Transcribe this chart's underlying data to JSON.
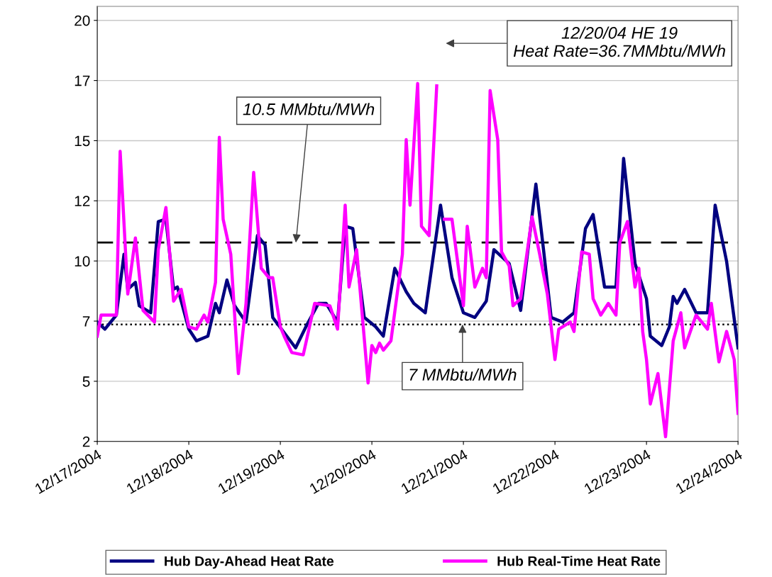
{
  "chart_data": {
    "type": "line",
    "xlim": [
      "2004-12-17",
      "2004-12-24"
    ],
    "xticks": [
      {
        "value": "2004-12-17",
        "label": "12/17/2004"
      },
      {
        "value": "2004-12-18",
        "label": "12/18/2004"
      },
      {
        "value": "2004-12-19",
        "label": "12/19/2004"
      },
      {
        "value": "2004-12-20",
        "label": "12/20/2004"
      },
      {
        "value": "2004-12-21",
        "label": "12/21/2004"
      },
      {
        "value": "2004-12-22",
        "label": "12/22/2004"
      },
      {
        "value": "2004-12-23",
        "label": "12/23/2004"
      },
      {
        "value": "2004-12-24",
        "label": "12/24/2004"
      }
    ],
    "ylim": [
      2,
      20.6
    ],
    "yticks": [
      2,
      {
        "value": 4.571,
        "label": "5"
      },
      {
        "value": 7.143,
        "label": "7"
      },
      {
        "value": 9.714,
        "label": "10"
      },
      {
        "value": 12.286,
        "label": "12"
      },
      {
        "value": 14.857,
        "label": "15"
      },
      {
        "value": 17.429,
        "label": "17"
      },
      20
    ],
    "grid": "y",
    "legend": "bottom",
    "marker": "none",
    "line_style": "solid",
    "series": [
      {
        "name": "Hub Day-Ahead Heat Rate",
        "color": "#000080",
        "x": [
          "2004-12-17T00:00",
          "2004-12-17T02:00",
          "2004-12-17T05:00",
          "2004-12-17T07:00",
          "2004-12-17T08:00",
          "2004-12-17T10:00",
          "2004-12-17T11:00",
          "2004-12-17T14:00",
          "2004-12-17T16:00",
          "2004-12-17T18:00",
          "2004-12-17T20:00",
          "2004-12-17T21:00",
          "2004-12-18T00:00",
          "2004-12-18T02:00",
          "2004-12-18T05:00",
          "2004-12-18T07:00",
          "2004-12-18T08:00",
          "2004-12-18T10:00",
          "2004-12-18T12:00",
          "2004-12-18T15:00",
          "2004-12-18T18:00",
          "2004-12-18T20:00",
          "2004-12-18T22:00",
          "2004-12-19T04:00",
          "2004-12-19T07:00",
          "2004-12-19T10:00",
          "2004-12-19T12:00",
          "2004-12-19T15:00",
          "2004-12-19T17:00",
          "2004-12-19T19:00",
          "2004-12-19T22:00",
          "2004-12-20T01:00",
          "2004-12-20T03:00",
          "2004-12-20T06:00",
          "2004-12-20T09:00",
          "2004-12-20T11:00",
          "2004-12-20T14:00",
          "2004-12-20T18:00",
          "2004-12-20T21:00",
          "2004-12-21T00:00",
          "2004-12-21T03:00",
          "2004-12-21T06:00",
          "2004-12-21T08:00",
          "2004-12-21T12:00",
          "2004-12-21T15:00",
          "2004-12-21T19:00",
          "2004-12-21T21:00",
          "2004-12-21T23:00",
          "2004-12-22T02:00",
          "2004-12-22T05:00",
          "2004-12-22T08:00",
          "2004-12-22T10:00",
          "2004-12-22T13:00",
          "2004-12-22T16:00",
          "2004-12-22T18:00",
          "2004-12-22T21:00",
          "2004-12-23T00:00",
          "2004-12-23T01:00",
          "2004-12-23T04:00",
          "2004-12-23T06:00",
          "2004-12-23T07:00",
          "2004-12-23T08:00",
          "2004-12-23T10:00",
          "2004-12-23T13:00",
          "2004-12-23T16:00",
          "2004-12-23T18:00",
          "2004-12-23T21:00",
          "2004-12-24T00:00"
        ],
        "values": [
          7.1,
          6.8,
          7.4,
          10.0,
          8.5,
          8.8,
          7.8,
          7.5,
          11.4,
          11.5,
          8.5,
          8.6,
          6.8,
          6.3,
          6.5,
          7.9,
          7.5,
          8.9,
          7.8,
          7.1,
          10.8,
          10.4,
          7.3,
          6.0,
          7.0,
          7.9,
          7.9,
          7.1,
          11.2,
          11.1,
          7.3,
          6.9,
          6.5,
          9.4,
          8.4,
          7.9,
          7.5,
          12.1,
          9.0,
          7.5,
          7.3,
          8.0,
          10.2,
          9.6,
          7.6,
          13.0,
          10.2,
          7.3,
          7.1,
          7.5,
          11.1,
          11.7,
          8.6,
          8.6,
          14.1,
          9.6,
          8.1,
          6.5,
          6.1,
          6.9,
          8.2,
          7.9,
          8.5,
          7.5,
          7.5,
          12.1,
          9.7,
          6.0
        ]
      },
      {
        "name": "Hub Real-Time Heat Rate",
        "color": "#ff00ff",
        "x": [
          "2004-12-17T00:00",
          "2004-12-17T01:00",
          "2004-12-17T05:00",
          "2004-12-17T06:00",
          "2004-12-17T08:00",
          "2004-12-17T10:00",
          "2004-12-17T12:00",
          "2004-12-17T15:00",
          "2004-12-17T16:00",
          "2004-12-17T18:00",
          "2004-12-17T20:00",
          "2004-12-17T22:00",
          "2004-12-18T00:00",
          "2004-12-18T02:00",
          "2004-12-18T04:00",
          "2004-12-18T05:00",
          "2004-12-18T07:00",
          "2004-12-18T08:00",
          "2004-12-18T09:00",
          "2004-12-18T11:00",
          "2004-12-18T13:00",
          "2004-12-18T15:00",
          "2004-12-18T17:00",
          "2004-12-18T19:00",
          "2004-12-18T21:00",
          "2004-12-18T22:00",
          "2004-12-19T00:00",
          "2004-12-19T01:00",
          "2004-12-19T03:00",
          "2004-12-19T06:00",
          "2004-12-19T09:00",
          "2004-12-19T13:00",
          "2004-12-19T15:00",
          "2004-12-19T17:00",
          "2004-12-19T18:00",
          "2004-12-19T20:00",
          "2004-12-19T23:00",
          "2004-12-20T00:00",
          "2004-12-20T01:00",
          "2004-12-20T02:00",
          "2004-12-20T03:00",
          "2004-12-20T05:00",
          "2004-12-20T08:00",
          "2004-12-20T09:00",
          "2004-12-20T10:00",
          "2004-12-20T12:00",
          "2004-12-20T13:00",
          "2004-12-20T15:00",
          "2004-12-20T17:00",
          "2004-12-20T18:00",
          "2004-12-20T19:00",
          "2004-12-20T21:00",
          "2004-12-21T00:00",
          "2004-12-21T01:00",
          "2004-12-21T03:00",
          "2004-12-21T05:00",
          "2004-12-21T06:00",
          "2004-12-21T07:00",
          "2004-12-21T09:00",
          "2004-12-21T10:00",
          "2004-12-21T12:00",
          "2004-12-21T13:00",
          "2004-12-21T15:00",
          "2004-12-21T18:00",
          "2004-12-21T20:00",
          "2004-12-21T22:00",
          "2004-12-22T00:00",
          "2004-12-22T01:00",
          "2004-12-22T04:00",
          "2004-12-22T05:00",
          "2004-12-22T07:00",
          "2004-12-22T09:00",
          "2004-12-22T10:00",
          "2004-12-22T12:00",
          "2004-12-22T14:00",
          "2004-12-22T16:00",
          "2004-12-22T17:00",
          "2004-12-22T19:00",
          "2004-12-22T21:00",
          "2004-12-22T22:00",
          "2004-12-22T23:00",
          "2004-12-23T00:00",
          "2004-12-23T01:00",
          "2004-12-23T03:00",
          "2004-12-23T05:00",
          "2004-12-23T07:00",
          "2004-12-23T09:00",
          "2004-12-23T10:00",
          "2004-12-23T13:00",
          "2004-12-23T16:00",
          "2004-12-23T17:00",
          "2004-12-23T19:00",
          "2004-12-23T21:00",
          "2004-12-23T23:00",
          "2004-12-24T00:00"
        ],
        "values": [
          6.5,
          7.4,
          7.4,
          14.4,
          8.3,
          10.7,
          7.6,
          7.1,
          10.2,
          12.0,
          8.0,
          8.5,
          6.9,
          6.8,
          7.4,
          7.1,
          8.8,
          15.0,
          11.5,
          10.0,
          4.9,
          7.9,
          13.5,
          9.4,
          9.0,
          9.0,
          6.9,
          6.5,
          5.8,
          5.7,
          7.9,
          7.8,
          6.8,
          12.1,
          8.6,
          10.2,
          4.5,
          6.1,
          5.8,
          6.2,
          5.9,
          6.3,
          10.0,
          14.9,
          12.1,
          17.3,
          11.2,
          10.8,
          17.2,
          null,
          11.5,
          11.5,
          7.8,
          11.2,
          8.6,
          9.4,
          9.0,
          17.0,
          14.9,
          10.1,
          9.5,
          7.8,
          8.1,
          11.6,
          10.0,
          8.3,
          5.5,
          6.8,
          7.1,
          6.7,
          10.1,
          10.0,
          8.1,
          7.4,
          7.9,
          7.4,
          10.5,
          11.4,
          8.6,
          9.4,
          6.7,
          5.5,
          3.6,
          4.9,
          2.2,
          6.3,
          7.5,
          6.0,
          7.4,
          6.8,
          7.9,
          5.4,
          6.7,
          5.5,
          3.2
        ]
      }
    ],
    "ref_lines": [
      {
        "axis": "y",
        "value": 10.5,
        "label": "10.5 MMbtu/MWh",
        "color": "#000000",
        "line_style": "dashed"
      },
      {
        "axis": "y",
        "value": 7,
        "label": "7 MMbtu/MWh",
        "color": "#000000",
        "line_style": "dotted"
      }
    ],
    "annotations": [
      "12/20/04 HE 19\nHeat Rate=36.7MMbtu/MWh"
    ]
  }
}
